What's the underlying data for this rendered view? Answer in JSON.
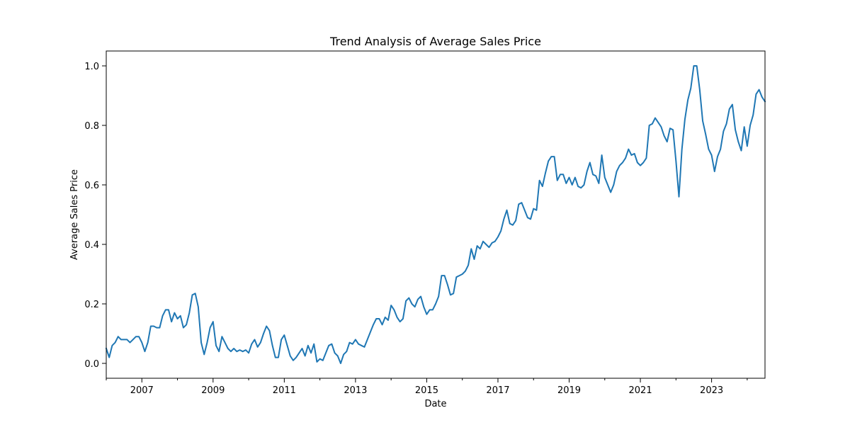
{
  "chart_data": {
    "type": "line",
    "title": "Trend Analysis of Average Sales Price",
    "xlabel": "Date",
    "ylabel": "Average Sales Price",
    "xlim": [
      "2006-01",
      "2024-07"
    ],
    "ylim": [
      -0.05,
      1.05
    ],
    "grid": false,
    "legend": "none",
    "x_ticks": [
      "2007",
      "2009",
      "2011",
      "2013",
      "2015",
      "2017",
      "2019",
      "2021",
      "2023"
    ],
    "y_ticks": [
      "0.0",
      "0.2",
      "0.4",
      "0.6",
      "0.8",
      "1.0"
    ],
    "series": [
      {
        "color": "#1f77b4",
        "x": [
          "2006-01",
          "2006-02",
          "2006-03",
          "2006-04",
          "2006-05",
          "2006-06",
          "2006-07",
          "2006-08",
          "2006-09",
          "2006-10",
          "2006-11",
          "2006-12",
          "2007-01",
          "2007-02",
          "2007-03",
          "2007-04",
          "2007-05",
          "2007-06",
          "2007-07",
          "2007-08",
          "2007-09",
          "2007-10",
          "2007-11",
          "2007-12",
          "2008-01",
          "2008-02",
          "2008-03",
          "2008-04",
          "2008-05",
          "2008-06",
          "2008-07",
          "2008-08",
          "2008-09",
          "2008-10",
          "2008-11",
          "2008-12",
          "2009-01",
          "2009-02",
          "2009-03",
          "2009-04",
          "2009-05",
          "2009-06",
          "2009-07",
          "2009-08",
          "2009-09",
          "2009-10",
          "2009-11",
          "2009-12",
          "2010-01",
          "2010-02",
          "2010-03",
          "2010-04",
          "2010-05",
          "2010-06",
          "2010-07",
          "2010-08",
          "2010-09",
          "2010-10",
          "2010-11",
          "2010-12",
          "2011-01",
          "2011-02",
          "2011-03",
          "2011-04",
          "2011-05",
          "2011-06",
          "2011-07",
          "2011-08",
          "2011-09",
          "2011-10",
          "2011-11",
          "2011-12",
          "2012-01",
          "2012-02",
          "2012-03",
          "2012-04",
          "2012-05",
          "2012-06",
          "2012-07",
          "2012-08",
          "2012-09",
          "2012-10",
          "2012-11",
          "2012-12",
          "2013-01",
          "2013-02",
          "2013-03",
          "2013-04",
          "2013-05",
          "2013-06",
          "2013-07",
          "2013-08",
          "2013-09",
          "2013-10",
          "2013-11",
          "2013-12",
          "2014-01",
          "2014-02",
          "2014-03",
          "2014-04",
          "2014-05",
          "2014-06",
          "2014-07",
          "2014-08",
          "2014-09",
          "2014-10",
          "2014-11",
          "2014-12",
          "2015-01",
          "2015-02",
          "2015-03",
          "2015-04",
          "2015-05",
          "2015-06",
          "2015-07",
          "2015-08",
          "2015-09",
          "2015-10",
          "2015-11",
          "2015-12",
          "2016-01",
          "2016-02",
          "2016-03",
          "2016-04",
          "2016-05",
          "2016-06",
          "2016-07",
          "2016-08",
          "2016-09",
          "2016-10",
          "2016-11",
          "2016-12",
          "2017-01",
          "2017-02",
          "2017-03",
          "2017-04",
          "2017-05",
          "2017-06",
          "2017-07",
          "2017-08",
          "2017-09",
          "2017-10",
          "2017-11",
          "2017-12",
          "2018-01",
          "2018-02",
          "2018-03",
          "2018-04",
          "2018-05",
          "2018-06",
          "2018-07",
          "2018-08",
          "2018-09",
          "2018-10",
          "2018-11",
          "2018-12",
          "2019-01",
          "2019-02",
          "2019-03",
          "2019-04",
          "2019-05",
          "2019-06",
          "2019-07",
          "2019-08",
          "2019-09",
          "2019-10",
          "2019-11",
          "2019-12",
          "2020-01",
          "2020-02",
          "2020-03",
          "2020-04",
          "2020-05",
          "2020-06",
          "2020-07",
          "2020-08",
          "2020-09",
          "2020-10",
          "2020-11",
          "2020-12",
          "2021-01",
          "2021-02",
          "2021-03",
          "2021-04",
          "2021-05",
          "2021-06",
          "2021-07",
          "2021-08",
          "2021-09",
          "2021-10",
          "2021-11",
          "2021-12",
          "2022-01",
          "2022-02",
          "2022-03",
          "2022-04",
          "2022-05",
          "2022-06",
          "2022-07",
          "2022-08",
          "2022-09",
          "2022-10",
          "2022-11",
          "2022-12",
          "2023-01",
          "2023-02",
          "2023-03",
          "2023-04",
          "2023-05",
          "2023-06",
          "2023-07",
          "2023-08",
          "2023-09",
          "2023-10",
          "2023-11",
          "2023-12",
          "2024-01",
          "2024-02",
          "2024-03",
          "2024-04",
          "2024-05",
          "2024-06",
          "2024-07"
        ],
        "y": [
          0.05,
          0.02,
          0.06,
          0.07,
          0.09,
          0.08,
          0.08,
          0.08,
          0.07,
          0.08,
          0.09,
          0.09,
          0.07,
          0.04,
          0.07,
          0.125,
          0.125,
          0.12,
          0.12,
          0.16,
          0.18,
          0.18,
          0.14,
          0.17,
          0.15,
          0.16,
          0.12,
          0.13,
          0.17,
          0.23,
          0.235,
          0.19,
          0.07,
          0.03,
          0.07,
          0.12,
          0.14,
          0.06,
          0.04,
          0.09,
          0.07,
          0.05,
          0.04,
          0.05,
          0.04,
          0.045,
          0.04,
          0.045,
          0.035,
          0.065,
          0.08,
          0.055,
          0.07,
          0.1,
          0.125,
          0.11,
          0.06,
          0.02,
          0.02,
          0.08,
          0.095,
          0.06,
          0.025,
          0.01,
          0.02,
          0.035,
          0.05,
          0.025,
          0.06,
          0.035,
          0.065,
          0.005,
          0.015,
          0.01,
          0.035,
          0.06,
          0.065,
          0.035,
          0.025,
          0.0,
          0.03,
          0.04,
          0.07,
          0.065,
          0.08,
          0.065,
          0.06,
          0.055,
          0.08,
          0.105,
          0.13,
          0.15,
          0.15,
          0.13,
          0.155,
          0.145,
          0.195,
          0.18,
          0.155,
          0.14,
          0.15,
          0.21,
          0.22,
          0.2,
          0.19,
          0.215,
          0.225,
          0.19,
          0.165,
          0.18,
          0.18,
          0.2,
          0.225,
          0.295,
          0.295,
          0.265,
          0.23,
          0.235,
          0.29,
          0.295,
          0.3,
          0.31,
          0.33,
          0.385,
          0.35,
          0.395,
          0.385,
          0.41,
          0.4,
          0.39,
          0.405,
          0.41,
          0.425,
          0.445,
          0.485,
          0.515,
          0.47,
          0.465,
          0.48,
          0.535,
          0.54,
          0.515,
          0.49,
          0.485,
          0.52,
          0.515,
          0.615,
          0.595,
          0.64,
          0.68,
          0.695,
          0.695,
          0.615,
          0.635,
          0.635,
          0.605,
          0.625,
          0.6,
          0.625,
          0.595,
          0.59,
          0.6,
          0.645,
          0.675,
          0.635,
          0.63,
          0.605,
          0.7,
          0.625,
          0.6,
          0.575,
          0.6,
          0.645,
          0.665,
          0.675,
          0.69,
          0.72,
          0.7,
          0.705,
          0.675,
          0.665,
          0.675,
          0.69,
          0.8,
          0.805,
          0.825,
          0.81,
          0.795,
          0.765,
          0.745,
          0.79,
          0.785,
          0.68,
          0.56,
          0.72,
          0.82,
          0.885,
          0.925,
          1.0,
          1.0,
          0.92,
          0.815,
          0.77,
          0.72,
          0.7,
          0.645,
          0.695,
          0.72,
          0.78,
          0.805,
          0.855,
          0.87,
          0.785,
          0.745,
          0.715,
          0.795,
          0.73,
          0.8,
          0.835,
          0.905,
          0.92,
          0.895,
          0.88
        ]
      }
    ]
  }
}
